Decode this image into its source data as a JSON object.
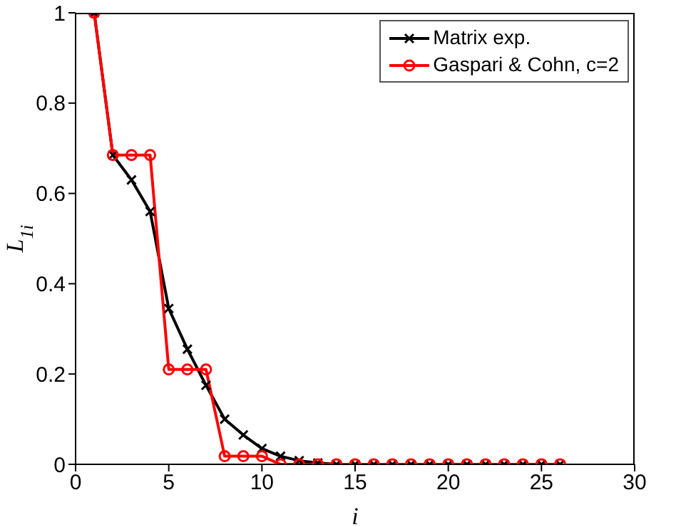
{
  "chart_data": {
    "type": "line",
    "xlabel": "i",
    "ylabel": "L$_{1i}$",
    "x": [
      1,
      2,
      3,
      4,
      5,
      6,
      7,
      8,
      9,
      10,
      11,
      12,
      13,
      14,
      15,
      16,
      17,
      18,
      19,
      20,
      21,
      22,
      23,
      24,
      25,
      26
    ],
    "series": [
      {
        "name": "Matrix exp.",
        "color": "#000000",
        "marker": "cross",
        "values": [
          1,
          0.685,
          0.63,
          0.56,
          0.345,
          0.255,
          0.175,
          0.1,
          0.065,
          0.035,
          0.018,
          0.008,
          0.003,
          0,
          0,
          0,
          0,
          0,
          0,
          0,
          0,
          0,
          0,
          0,
          0,
          0
        ]
      },
      {
        "name": "Gaspari & Cohn, c=2",
        "color": "#ff0000",
        "marker": "circle",
        "values": [
          1,
          0.685,
          0.685,
          0.685,
          0.21,
          0.21,
          0.21,
          0.018,
          0.018,
          0.018,
          0,
          0,
          0,
          0,
          0,
          0,
          0,
          0,
          0,
          0,
          0,
          0,
          0,
          0,
          0,
          0
        ]
      }
    ],
    "xlim": [
      0,
      30
    ],
    "xticks": [
      0,
      5,
      10,
      15,
      20,
      25,
      30
    ],
    "ylim": [
      0,
      1
    ],
    "yticks": [
      0,
      0.2,
      0.4,
      0.6,
      0.8,
      1
    ],
    "grid": false,
    "legend": "top right",
    "line_style": "solid"
  }
}
